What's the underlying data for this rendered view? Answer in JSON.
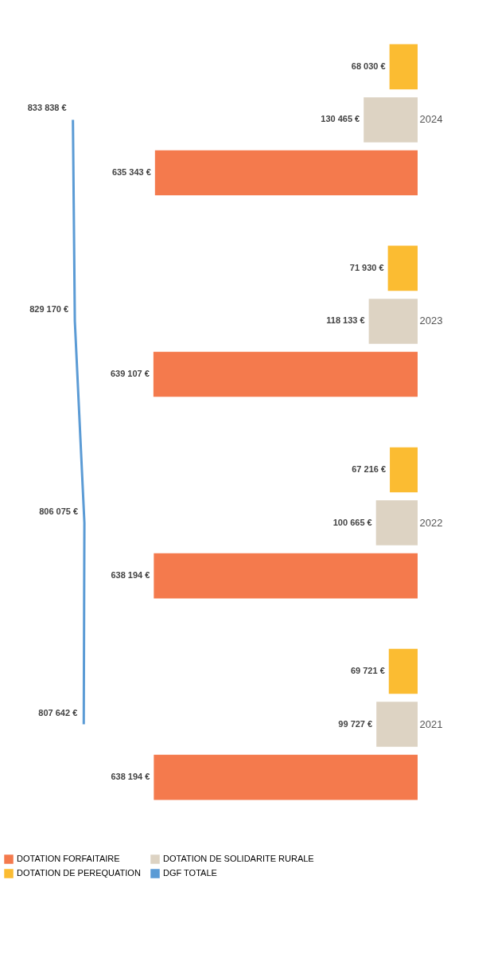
{
  "chart_data": {
    "type": "bar",
    "orientation": "horizontal",
    "categories": [
      "2024",
      "2023",
      "2022",
      "2021"
    ],
    "series": [
      {
        "name": "DOTATION FORFAITAIRE",
        "color": "#f47a4d",
        "values": [
          635343,
          639107,
          638194,
          638194
        ],
        "value_labels": [
          "635 343 €",
          "639 107 €",
          "638 194 €",
          "638 194 €"
        ]
      },
      {
        "name": "DOTATION DE SOLIDARITE RURALE",
        "color": "#ddd3c3",
        "values": [
          130465,
          118133,
          100665,
          99727
        ],
        "value_labels": [
          "130 465 €",
          "118 133 €",
          "100 665 €",
          "99 727 €"
        ]
      },
      {
        "name": "DOTATION DE PEREQUATION",
        "color": "#fbbc32",
        "values": [
          68030,
          71930,
          67216,
          69721
        ],
        "value_labels": [
          "68 030 €",
          "71 930 €",
          "67 216 €",
          "69 721 €"
        ]
      },
      {
        "name": "DGF TOTALE",
        "type": "line",
        "color": "#5b9bd5",
        "values": [
          833838,
          829170,
          806075,
          807642
        ],
        "value_labels": [
          "833 838 €",
          "829 170 €",
          "806 075 €",
          "807 642 €"
        ]
      }
    ],
    "legend": "bottom",
    "grid": false,
    "tick_labels": "y"
  }
}
